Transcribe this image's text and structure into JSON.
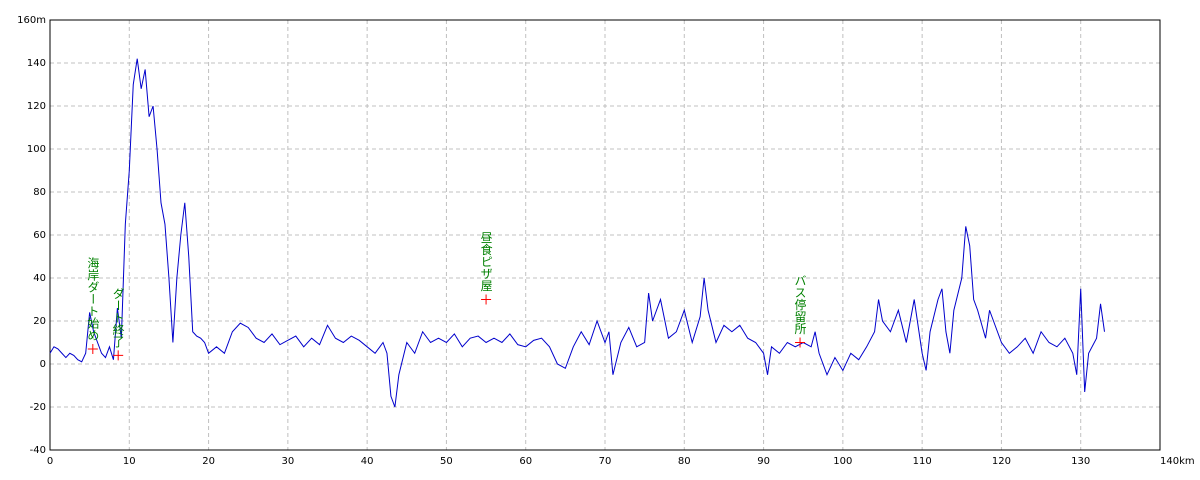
{
  "chart_data": {
    "type": "line",
    "color": "#0000cc",
    "grid": true,
    "xlim": [
      0,
      140
    ],
    "ylim": [
      -40,
      160
    ],
    "xticks": [
      0,
      10,
      20,
      30,
      40,
      50,
      60,
      70,
      80,
      90,
      100,
      110,
      120,
      130,
      {
        "value": 140,
        "label": "140km"
      }
    ],
    "yticks": [
      -40,
      -20,
      0,
      20,
      40,
      60,
      80,
      100,
      120,
      140,
      {
        "value": 160,
        "label": "160m"
      }
    ],
    "x": [
      0,
      0.5,
      1,
      1.5,
      2,
      2.5,
      3,
      3.5,
      4,
      4.5,
      5,
      5.5,
      6,
      6.5,
      7,
      7.5,
      8,
      8.5,
      9,
      9.5,
      10,
      10.5,
      11,
      11.5,
      12,
      12.5,
      13,
      13.5,
      14,
      14.5,
      15,
      15.5,
      16,
      16.5,
      17,
      17.5,
      18,
      18.5,
      19,
      19.5,
      20,
      21,
      22,
      23,
      24,
      25,
      26,
      27,
      28,
      29,
      30,
      31,
      32,
      33,
      34,
      35,
      36,
      37,
      38,
      39,
      40,
      41,
      42,
      42.5,
      43,
      43.5,
      44,
      45,
      46,
      47,
      48,
      49,
      50,
      51,
      52,
      53,
      54,
      55,
      56,
      57,
      58,
      59,
      60,
      61,
      62,
      63,
      64,
      65,
      66,
      67,
      68,
      69,
      70,
      70.5,
      71,
      72,
      73,
      74,
      75,
      75.5,
      76,
      77,
      78,
      79,
      80,
      81,
      82,
      82.5,
      83,
      84,
      85,
      86,
      87,
      88,
      89,
      90,
      90.5,
      91,
      92,
      93,
      94,
      95,
      96,
      96.5,
      97,
      98,
      99,
      100,
      101,
      102,
      103,
      104,
      104.5,
      105,
      106,
      107,
      108,
      109,
      110,
      110.5,
      111,
      112,
      112.5,
      113,
      113.5,
      114,
      115,
      115.5,
      116,
      116.5,
      117,
      118,
      118.5,
      119,
      120,
      121,
      122,
      123,
      124,
      125,
      126,
      127,
      128,
      129,
      129.5,
      130,
      130.5,
      131,
      132,
      132.5,
      133
    ],
    "values": [
      5,
      8,
      7,
      5,
      3,
      5,
      4,
      2,
      1,
      5,
      24,
      15,
      10,
      5,
      3,
      8,
      2,
      26,
      12,
      65,
      90,
      130,
      142,
      128,
      137,
      115,
      120,
      100,
      75,
      65,
      40,
      10,
      40,
      60,
      75,
      50,
      15,
      13,
      12,
      10,
      5,
      8,
      5,
      15,
      19,
      17,
      12,
      10,
      14,
      9,
      11,
      13,
      8,
      12,
      9,
      18,
      12,
      10,
      13,
      11,
      8,
      5,
      10,
      5,
      -15,
      -20,
      -5,
      10,
      5,
      15,
      10,
      12,
      10,
      14,
      8,
      12,
      13,
      10,
      12,
      10,
      14,
      9,
      8,
      11,
      12,
      8,
      0,
      -2,
      8,
      15,
      9,
      20,
      10,
      15,
      -5,
      10,
      17,
      8,
      10,
      33,
      20,
      30,
      12,
      15,
      25,
      10,
      22,
      40,
      25,
      10,
      18,
      15,
      18,
      12,
      10,
      5,
      -5,
      8,
      5,
      10,
      8,
      10,
      8,
      15,
      5,
      -5,
      3,
      -3,
      5,
      2,
      8,
      15,
      30,
      20,
      15,
      25,
      10,
      30,
      5,
      -3,
      15,
      30,
      35,
      15,
      5,
      25,
      40,
      64,
      55,
      30,
      25,
      12,
      25,
      20,
      10,
      5,
      8,
      12,
      5,
      15,
      10,
      8,
      12,
      5,
      -5,
      35,
      -13,
      5,
      12,
      28,
      15
    ],
    "annotations": [
      {
        "x": 5.4,
        "y": 7,
        "text": "海岸ダート始め"
      },
      {
        "x": 8.6,
        "y": 4,
        "text": "ダート終了"
      },
      {
        "x": 55,
        "y": 30,
        "text": "昼食ピザ屋"
      },
      {
        "x": 94.6,
        "y": 10,
        "text": "バス停留所"
      }
    ]
  }
}
